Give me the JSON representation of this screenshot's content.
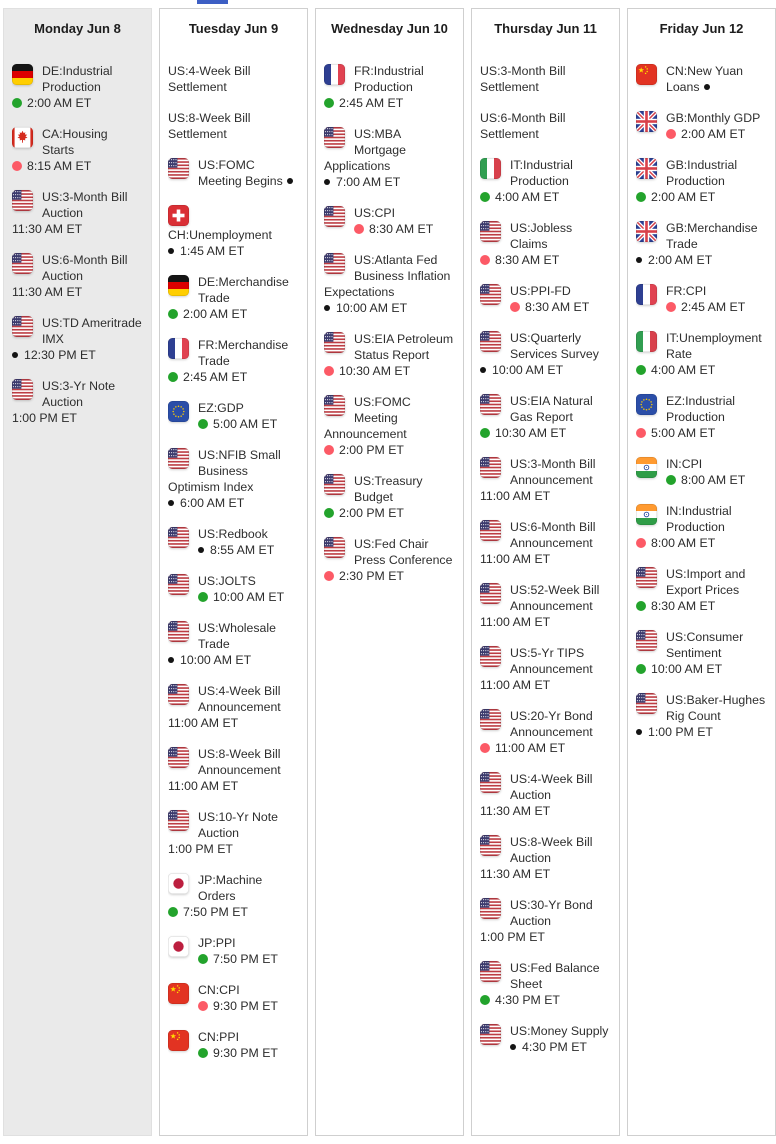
{
  "colors": {
    "green_dot": "#23a32c",
    "pink_dot": "#fc5a66",
    "black_dot": "#141414",
    "top_bar": "#3d5fc4",
    "highlight_column_bg": "#eaeaea"
  },
  "icons": {
    "green_dot": "released-on-time-dot-icon",
    "pink_dot": "market-moving-dot-icon",
    "black_dot": "minor-event-dot-icon"
  },
  "days": [
    {
      "label": "Monday Jun 8",
      "highlighted": true,
      "events": [
        {
          "flag": "de",
          "title": "DE:Industrial Production",
          "dot": "green",
          "time": "2:00 AM ET"
        },
        {
          "flag": "ca",
          "title": "CA:Housing Starts",
          "dot": "pink",
          "time": "8:15 AM ET"
        },
        {
          "flag": "us",
          "title": "US:3-Month Bill Auction",
          "dot": "none",
          "time": "11:30 AM ET"
        },
        {
          "flag": "us",
          "title": "US:6-Month Bill Auction",
          "dot": "none",
          "time": "11:30 AM ET"
        },
        {
          "flag": "us",
          "title": "US:TD Ameritrade IMX",
          "dot": "black",
          "time": "12:30 PM ET"
        },
        {
          "flag": "us",
          "title": "US:3-Yr Note Auction",
          "dot": "none",
          "time": "1:00 PM ET"
        }
      ]
    },
    {
      "label": "Tuesday Jun 9",
      "highlighted": false,
      "events": [
        {
          "flag": null,
          "title": "US:4-Week Bill Settlement",
          "dot": "none",
          "time": null
        },
        {
          "flag": null,
          "title": "US:8-Week Bill Settlement",
          "dot": "none",
          "time": null
        },
        {
          "flag": "us",
          "title": "US:FOMC Meeting Begins",
          "dot": "none",
          "time": null,
          "title_dot": true
        },
        {
          "flag": "ch",
          "title": "CH:Unemployment",
          "dot": "black",
          "time": "1:45 AM ET"
        },
        {
          "flag": "de",
          "title": "DE:Merchandise Trade",
          "dot": "green",
          "time": "2:00 AM ET"
        },
        {
          "flag": "fr",
          "title": "FR:Merchandise Trade",
          "dot": "green",
          "time": "2:45 AM ET"
        },
        {
          "flag": "eu",
          "title": "EZ:GDP",
          "dot": "green",
          "time": "5:00 AM ET"
        },
        {
          "flag": "us",
          "title": "US:NFIB Small Business Optimism Index",
          "dot": "black",
          "time": "6:00 AM ET"
        },
        {
          "flag": "us",
          "title": "US:Redbook",
          "dot": "black",
          "time": "8:55 AM ET"
        },
        {
          "flag": "us",
          "title": "US:JOLTS",
          "dot": "green",
          "time": "10:00 AM ET"
        },
        {
          "flag": "us",
          "title": "US:Wholesale Trade",
          "dot": "black",
          "time": "10:00 AM ET"
        },
        {
          "flag": "us",
          "title": "US:4-Week Bill Announcement",
          "dot": "none",
          "time": "11:00 AM ET"
        },
        {
          "flag": "us",
          "title": "US:8-Week Bill Announcement",
          "dot": "none",
          "time": "11:00 AM ET"
        },
        {
          "flag": "us",
          "title": "US:10-Yr Note Auction",
          "dot": "none",
          "time": "1:00 PM ET"
        },
        {
          "flag": "jp",
          "title": "JP:Machine Orders",
          "dot": "green",
          "time": "7:50 PM ET"
        },
        {
          "flag": "jp",
          "title": "JP:PPI",
          "dot": "green",
          "time": "7:50 PM ET"
        },
        {
          "flag": "cn",
          "title": "CN:CPI",
          "dot": "pink",
          "time": "9:30 PM ET"
        },
        {
          "flag": "cn",
          "title": "CN:PPI",
          "dot": "green",
          "time": "9:30 PM ET"
        }
      ]
    },
    {
      "label": "Wednesday Jun 10",
      "highlighted": false,
      "events": [
        {
          "flag": "fr",
          "title": "FR:Industrial Production",
          "dot": "green",
          "time": "2:45 AM ET"
        },
        {
          "flag": "us",
          "title": "US:MBA Mortgage Applications",
          "dot": "black",
          "time": "7:00 AM ET"
        },
        {
          "flag": "us",
          "title": "US:CPI",
          "dot": "pink",
          "time": "8:30 AM ET"
        },
        {
          "flag": "us",
          "title": "US:Atlanta Fed Business Inflation Expectations",
          "dot": "black",
          "time": "10:00 AM ET"
        },
        {
          "flag": "us",
          "title": "US:EIA Petroleum Status Report",
          "dot": "pink",
          "time": "10:30 AM ET"
        },
        {
          "flag": "us",
          "title": "US:FOMC Meeting Announcement",
          "dot": "pink",
          "time": "2:00 PM ET"
        },
        {
          "flag": "us",
          "title": "US:Treasury Budget",
          "dot": "green",
          "time": "2:00 PM ET"
        },
        {
          "flag": "us",
          "title": "US:Fed Chair Press Conference",
          "dot": "pink",
          "time": "2:30 PM ET"
        }
      ]
    },
    {
      "label": "Thursday Jun 11",
      "highlighted": false,
      "events": [
        {
          "flag": null,
          "title": "US:3-Month Bill Settlement",
          "dot": "none",
          "time": null
        },
        {
          "flag": null,
          "title": "US:6-Month Bill Settlement",
          "dot": "none",
          "time": null
        },
        {
          "flag": "it",
          "title": "IT:Industrial Production",
          "dot": "green",
          "time": "4:00 AM ET"
        },
        {
          "flag": "us",
          "title": "US:Jobless Claims",
          "dot": "pink",
          "time": "8:30 AM ET"
        },
        {
          "flag": "us",
          "title": "US:PPI-FD",
          "dot": "pink",
          "time": "8:30 AM ET"
        },
        {
          "flag": "us",
          "title": "US:Quarterly Services Survey",
          "dot": "black",
          "time": "10:00 AM ET"
        },
        {
          "flag": "us",
          "title": "US:EIA Natural Gas Report",
          "dot": "green",
          "time": "10:30 AM ET"
        },
        {
          "flag": "us",
          "title": "US:3-Month Bill Announcement",
          "dot": "none",
          "time": "11:00 AM ET"
        },
        {
          "flag": "us",
          "title": "US:6-Month Bill Announcement",
          "dot": "none",
          "time": "11:00 AM ET"
        },
        {
          "flag": "us",
          "title": "US:52-Week Bill Announcement",
          "dot": "none",
          "time": "11:00 AM ET"
        },
        {
          "flag": "us",
          "title": "US:5-Yr TIPS Announcement",
          "dot": "none",
          "time": "11:00 AM ET"
        },
        {
          "flag": "us",
          "title": "US:20-Yr Bond Announcement",
          "dot": "pink",
          "time": "11:00 AM ET"
        },
        {
          "flag": "us",
          "title": "US:4-Week Bill Auction",
          "dot": "none",
          "time": "11:30 AM ET"
        },
        {
          "flag": "us",
          "title": "US:8-Week Bill Auction",
          "dot": "none",
          "time": "11:30 AM ET"
        },
        {
          "flag": "us",
          "title": "US:30-Yr Bond Auction",
          "dot": "none",
          "time": "1:00 PM ET"
        },
        {
          "flag": "us",
          "title": "US:Fed Balance Sheet",
          "dot": "green",
          "time": "4:30 PM ET"
        },
        {
          "flag": "us",
          "title": "US:Money Supply",
          "dot": "black",
          "time": "4:30 PM ET"
        }
      ]
    },
    {
      "label": "Friday Jun 12",
      "highlighted": false,
      "events": [
        {
          "flag": "cn",
          "title": "CN:New Yuan Loans",
          "dot": "none",
          "time": null,
          "title_dot": true
        },
        {
          "flag": "gb",
          "title": "GB:Monthly GDP",
          "dot": "pink",
          "time": "2:00 AM ET"
        },
        {
          "flag": "gb",
          "title": "GB:Industrial Production",
          "dot": "green",
          "time": "2:00 AM ET"
        },
        {
          "flag": "gb",
          "title": "GB:Merchandise Trade",
          "dot": "black",
          "time": "2:00 AM ET"
        },
        {
          "flag": "fr",
          "title": "FR:CPI",
          "dot": "pink",
          "time": "2:45 AM ET"
        },
        {
          "flag": "it",
          "title": "IT:Unemployment Rate",
          "dot": "green",
          "time": "4:00 AM ET"
        },
        {
          "flag": "eu",
          "title": "EZ:Industrial Production",
          "dot": "pink",
          "time": "5:00 AM ET"
        },
        {
          "flag": "in",
          "title": "IN:CPI",
          "dot": "green",
          "time": "8:00 AM ET"
        },
        {
          "flag": "in",
          "title": "IN:Industrial Production",
          "dot": "pink",
          "time": "8:00 AM ET"
        },
        {
          "flag": "us",
          "title": "US:Import and Export Prices",
          "dot": "green",
          "time": "8:30 AM ET"
        },
        {
          "flag": "us",
          "title": "US:Consumer Sentiment",
          "dot": "green",
          "time": "10:00 AM ET"
        },
        {
          "flag": "us",
          "title": "US:Baker-Hughes Rig Count",
          "dot": "black",
          "time": "1:00 PM ET"
        }
      ]
    }
  ]
}
